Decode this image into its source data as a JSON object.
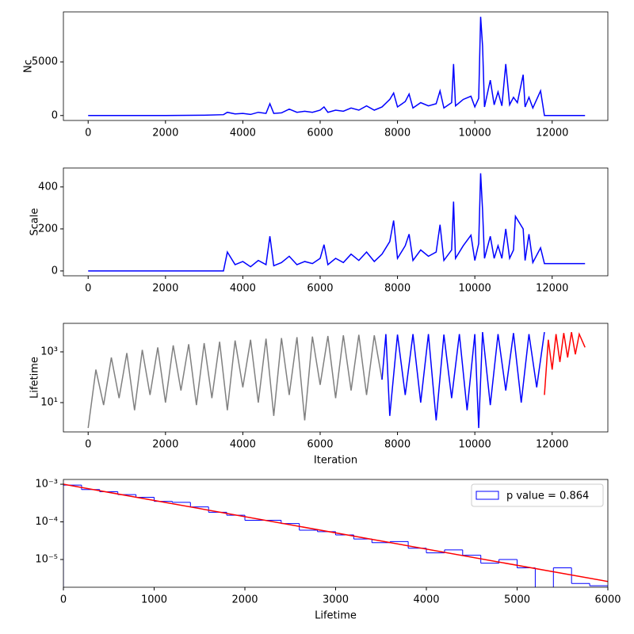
{
  "chart_data": [
    {
      "type": "line",
      "y_label": "Nc",
      "xlim": [
        -640,
        13440
      ],
      "ylim": [
        -460,
        9660
      ],
      "xticks": [
        0,
        2000,
        4000,
        6000,
        8000,
        10000,
        12000
      ],
      "yticks": [
        0,
        5000
      ],
      "series": [
        {
          "color": "blue",
          "x": [
            0,
            1000,
            2000,
            3000,
            3500,
            3600,
            3800,
            4000,
            4200,
            4400,
            4600,
            4700,
            4800,
            5000,
            5200,
            5400,
            5600,
            5800,
            6000,
            6100,
            6200,
            6400,
            6600,
            6800,
            7000,
            7200,
            7400,
            7600,
            7800,
            7900,
            8000,
            8200,
            8300,
            8400,
            8600,
            8800,
            9000,
            9100,
            9200,
            9400,
            9450,
            9500,
            9700,
            9900,
            10000,
            10100,
            10150,
            10200,
            10250,
            10400,
            10500,
            10600,
            10700,
            10800,
            10900,
            11000,
            11100,
            11250,
            11300,
            11400,
            11500,
            11700,
            11800,
            12850
          ],
          "values": [
            0,
            0,
            0,
            30,
            80,
            300,
            150,
            200,
            100,
            300,
            200,
            1100,
            200,
            250,
            600,
            300,
            400,
            300,
            500,
            800,
            300,
            500,
            400,
            700,
            500,
            900,
            500,
            800,
            1500,
            2100,
            800,
            1300,
            2000,
            700,
            1200,
            900,
            1100,
            2300,
            700,
            1200,
            4800,
            900,
            1500,
            1800,
            800,
            1600,
            9200,
            6500,
            800,
            3300,
            1000,
            2200,
            900,
            4800,
            1000,
            1700,
            1200,
            3800,
            800,
            1700,
            700,
            2300,
            0,
            0
          ]
        }
      ]
    },
    {
      "type": "line",
      "y_label": "Scale",
      "xlim": [
        -640,
        13440
      ],
      "ylim": [
        -23,
        490
      ],
      "xticks": [
        0,
        2000,
        4000,
        6000,
        8000,
        10000,
        12000
      ],
      "yticks": [
        0,
        200,
        400
      ],
      "series": [
        {
          "color": "blue",
          "x": [
            0,
            1000,
            2000,
            3000,
            3500,
            3600,
            3800,
            4000,
            4200,
            4400,
            4600,
            4700,
            4800,
            5000,
            5200,
            5400,
            5600,
            5800,
            6000,
            6100,
            6200,
            6400,
            6600,
            6800,
            7000,
            7200,
            7400,
            7600,
            7800,
            7900,
            8000,
            8200,
            8300,
            8400,
            8600,
            8800,
            9000,
            9100,
            9200,
            9400,
            9450,
            9500,
            9700,
            9900,
            10000,
            10100,
            10150,
            10200,
            10250,
            10400,
            10500,
            10600,
            10700,
            10800,
            10900,
            11000,
            11050,
            11250,
            11300,
            11400,
            11500,
            11700,
            11800,
            12850
          ],
          "values": [
            0,
            0,
            0,
            0,
            0,
            90,
            30,
            45,
            20,
            50,
            30,
            165,
            25,
            40,
            70,
            30,
            45,
            35,
            60,
            125,
            30,
            60,
            40,
            80,
            50,
            90,
            45,
            80,
            140,
            240,
            60,
            120,
            175,
            50,
            100,
            70,
            90,
            220,
            50,
            100,
            330,
            60,
            120,
            170,
            50,
            130,
            465,
            290,
            60,
            165,
            60,
            120,
            60,
            200,
            60,
            100,
            260,
            200,
            50,
            175,
            40,
            110,
            35,
            35
          ]
        }
      ]
    },
    {
      "type": "line",
      "y_label": "Lifetime",
      "x_label": "Iteration",
      "y_scale": "log",
      "xlim": [
        -640,
        13440
      ],
      "ylim": [
        0.7,
        13300
      ],
      "xticks": [
        0,
        2000,
        4000,
        6000,
        8000,
        10000,
        12000
      ],
      "yticks": [
        {
          "value": 10,
          "label": "10¹"
        },
        {
          "value": 1000,
          "label": "10³"
        }
      ],
      "series": [
        {
          "color": "gray",
          "x": [
            0,
            200,
            400,
            600,
            800,
            1000,
            1200,
            1400,
            1600,
            1800,
            2000,
            2200,
            2400,
            2600,
            2800,
            3000,
            3200,
            3400,
            3600,
            3800,
            4000,
            4200,
            4400,
            4600,
            4800,
            5000,
            5200,
            5400,
            5600,
            5800,
            6000,
            6200,
            6400,
            6600,
            6800,
            7000,
            7200,
            7400,
            7600
          ],
          "values": [
            1,
            200,
            8,
            600,
            15,
            900,
            5,
            1200,
            20,
            1500,
            10,
            1800,
            30,
            2000,
            8,
            2200,
            15,
            2500,
            5,
            2800,
            40,
            3000,
            10,
            3300,
            3,
            3500,
            20,
            3800,
            2,
            4000,
            50,
            4200,
            15,
            4500,
            30,
            4700,
            20,
            4500,
            80
          ]
        },
        {
          "color": "blue",
          "x": [
            7600,
            7700,
            7800,
            8000,
            8200,
            8400,
            8600,
            8800,
            9000,
            9200,
            9400,
            9600,
            9800,
            10000,
            10100,
            10200,
            10400,
            10600,
            10800,
            11000,
            11200,
            11400,
            11600,
            11800
          ],
          "values": [
            80,
            5000,
            3,
            4800,
            20,
            5000,
            10,
            5000,
            2,
            4800,
            15,
            5000,
            5,
            5000,
            1,
            6000,
            8,
            5000,
            30,
            5500,
            10,
            5000,
            40,
            6000
          ]
        },
        {
          "color": "red",
          "x": [
            11800,
            11900,
            12000,
            12100,
            12200,
            12300,
            12400,
            12500,
            12600,
            12700,
            12850
          ],
          "values": [
            20,
            3000,
            200,
            5000,
            400,
            5500,
            600,
            6000,
            800,
            5000,
            1500
          ]
        }
      ]
    },
    {
      "type": "histogram",
      "x_label": "Lifetime",
      "y_scale": "log",
      "xlim": [
        0,
        6000
      ],
      "ylim": [
        1.83e-06,
        0.00134
      ],
      "xticks": [
        0,
        1000,
        2000,
        3000,
        4000,
        5000,
        6000
      ],
      "yticks": [
        {
          "value": 1e-05,
          "label": "10⁻⁵"
        },
        {
          "value": 0.0001,
          "label": "10⁻⁴"
        },
        {
          "value": 0.001,
          "label": "10⁻³"
        }
      ],
      "name": "p value = 0.864",
      "color": "blue",
      "legend": "upper right",
      "bins": [
        0,
        200,
        400,
        600,
        800,
        1000,
        1200,
        1400,
        1600,
        1800,
        2000,
        2200,
        2400,
        2600,
        2800,
        3000,
        3200,
        3400,
        3600,
        3800,
        4000,
        4200,
        4400,
        4600,
        4800,
        5000,
        5200,
        5400,
        5600,
        5800,
        6000
      ],
      "values": [
        0.00095,
        0.00072,
        0.00063,
        0.00053,
        0.00045,
        0.00035,
        0.00033,
        0.00025,
        0.00018,
        0.00015,
        0.00011,
        0.00011,
        9e-05,
        6e-05,
        5.5e-05,
        4.5e-05,
        3.5e-05,
        2.8e-05,
        3e-05,
        2e-05,
        1.5e-05,
        1.8e-05,
        1.3e-05,
        8e-06,
        1e-05,
        6e-06,
        0,
        6e-06,
        2.3e-06,
        2e-06
      ],
      "fit": {
        "color": "red",
        "x": [
          0,
          6000
        ],
        "values": [
          0.001,
          2.6e-06
        ]
      }
    }
  ]
}
